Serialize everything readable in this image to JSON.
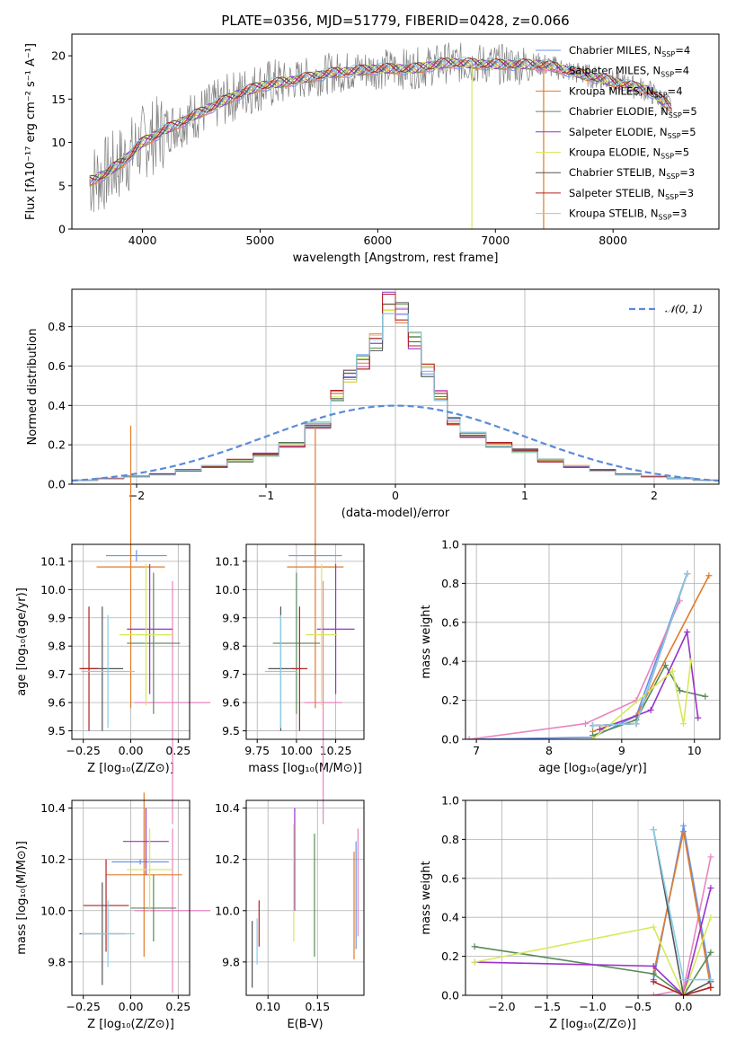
{
  "figure": {
    "title": "PLATE=0356, MJD=51779, FIBERID=0428, z=0.066"
  },
  "colors": {
    "chabrier_miles": "#6495ed",
    "salpeter_miles": "#e884c0",
    "kroupa_miles": "#e07b2a",
    "chabrier_elodie": "#5a8a5a",
    "salpeter_elodie": "#9932cc",
    "kroupa_elodie": "#d8e85a",
    "chabrier_stelib": "#555555",
    "salpeter_stelib": "#b22222",
    "kroupa_stelib": "#87ceeb",
    "data": "#808080",
    "normal": "#5b8ad8"
  },
  "chart_data": [
    {
      "id": "spectrum",
      "type": "line",
      "xlabel": "wavelength [Angstrom, rest frame]",
      "ylabel": "Flux [fλ10⁻¹⁷ erg cm⁻² s⁻¹ A⁻¹]",
      "xlim": [
        3400,
        8900
      ],
      "ylim": [
        0,
        22.5
      ],
      "xticks": [
        "4000",
        "5000",
        "6000",
        "7000",
        "8000"
      ],
      "yticks": [
        "0",
        "5",
        "10",
        "15",
        "20"
      ],
      "grid": false,
      "legend_position": "right",
      "continuum": {
        "x": [
          3550,
          3700,
          3850,
          4000,
          4200,
          4500,
          4800,
          5000,
          5300,
          5600,
          6000,
          6300,
          6600,
          7000,
          7400,
          7700,
          8000,
          8300,
          8500
        ],
        "y": [
          5.5,
          6.5,
          8,
          10,
          11.5,
          13.5,
          15.5,
          16.5,
          17.2,
          18,
          18.5,
          18.5,
          19.2,
          19,
          19,
          18,
          17,
          16,
          14
        ]
      },
      "legend": [
        {
          "label": "Chabrier MILES",
          "nssp": "4"
        },
        {
          "label": "Salpeter MILES",
          "nssp": "4"
        },
        {
          "label": "Kroupa MILES",
          "nssp": "4"
        },
        {
          "label": "Chabrier ELODIE",
          "nssp": "5"
        },
        {
          "label": "Salpeter ELODIE",
          "nssp": "5"
        },
        {
          "label": "Kroupa ELODIE",
          "nssp": "5"
        },
        {
          "label": "Chabrier STELIB",
          "nssp": "3"
        },
        {
          "label": "Salpeter STELIB",
          "nssp": "3"
        },
        {
          "label": "Kroupa STELIB",
          "nssp": "3"
        }
      ]
    },
    {
      "id": "residuals",
      "type": "histogram",
      "xlabel": "(data-model)/error",
      "ylabel": "Normed distribution",
      "xlim": [
        -2.5,
        2.5
      ],
      "ylim": [
        0,
        0.99
      ],
      "xticks": [
        "−2",
        "−1",
        "0",
        "1",
        "2"
      ],
      "yticks": [
        "0.0",
        "0.2",
        "0.4",
        "0.6",
        "0.8"
      ],
      "grid": true,
      "legend_position": "top-right",
      "normal_label": "𝒩(0, 1)",
      "bin_edges": [
        -2.5,
        -2.3,
        -2.1,
        -1.9,
        -1.7,
        -1.5,
        -1.3,
        -1.1,
        -0.9,
        -0.7,
        -0.5,
        -0.4,
        -0.3,
        -0.2,
        -0.1,
        0.0,
        0.1,
        0.2,
        0.3,
        0.4,
        0.5,
        0.7,
        0.9,
        1.1,
        1.3,
        1.5,
        1.7,
        1.9,
        2.1,
        2.3,
        2.5
      ],
      "hist": [
        0.02,
        0.03,
        0.04,
        0.05,
        0.07,
        0.09,
        0.12,
        0.15,
        0.2,
        0.3,
        0.45,
        0.55,
        0.62,
        0.72,
        0.92,
        0.87,
        0.73,
        0.58,
        0.45,
        0.32,
        0.25,
        0.2,
        0.17,
        0.12,
        0.09,
        0.07,
        0.05,
        0.04,
        0.03,
        0.02
      ]
    },
    {
      "id": "age_vs_Z",
      "type": "errorbar",
      "xlabel": "Z [log₁₀(Z/Z⊙)]",
      "ylabel": "age  [log₁₀(age/yr)]",
      "xlim": [
        -0.31,
        0.31
      ],
      "ylim": [
        9.47,
        10.16
      ],
      "xticks": [
        "−0.25",
        "0.00",
        "0.25"
      ],
      "yticks": [
        "9.5",
        "9.6",
        "9.7",
        "9.8",
        "9.9",
        "10.0",
        "10.1"
      ],
      "grid": true,
      "points": [
        {
          "x": 0.03,
          "y": 10.12,
          "xerr": 0.16,
          "yerr": 0.02
        },
        {
          "x": 0.22,
          "y": 9.6,
          "xerr": 0.2,
          "yerr": 0.43
        },
        {
          "x": 0.0,
          "y": 10.08,
          "xerr": 0.18,
          "yerr": 0.5
        },
        {
          "x": 0.12,
          "y": 9.81,
          "xerr": 0.14,
          "yerr": 0.25
        },
        {
          "x": 0.1,
          "y": 9.86,
          "xerr": 0.12,
          "yerr": 0.23
        },
        {
          "x": 0.08,
          "y": 9.84,
          "xerr": 0.14,
          "yerr": 0.25
        },
        {
          "x": -0.15,
          "y": 9.72,
          "xerr": 0.11,
          "yerr": 0.22
        },
        {
          "x": -0.22,
          "y": 9.72,
          "xerr": 0.05,
          "yerr": 0.22
        },
        {
          "x": -0.12,
          "y": 9.71,
          "xerr": 0.14,
          "yerr": 0.2
        }
      ]
    },
    {
      "id": "age_vs_mass",
      "type": "errorbar",
      "xlabel": "mass [log₁₀(M/M⊙)]",
      "ylabel": "",
      "xlim": [
        9.68,
        10.43
      ],
      "ylim": [
        9.47,
        10.16
      ],
      "xticks": [
        "9.75",
        "10.00",
        "10.25"
      ],
      "yticks": [
        "9.5",
        "9.6",
        "9.7",
        "9.8",
        "9.9",
        "10.0",
        "10.1"
      ],
      "grid": true,
      "points": [
        {
          "x": 10.12,
          "y": 10.12,
          "xerr": 0.17,
          "yerr": 0.02
        },
        {
          "x": 10.17,
          "y": 9.6,
          "xerr": 0.12,
          "yerr": 0.43
        },
        {
          "x": 10.12,
          "y": 10.08,
          "xerr": 0.18,
          "yerr": 0.5
        },
        {
          "x": 10.0,
          "y": 9.81,
          "xerr": 0.15,
          "yerr": 0.25
        },
        {
          "x": 10.25,
          "y": 9.86,
          "xerr": 0.12,
          "yerr": 0.23
        },
        {
          "x": 10.16,
          "y": 9.84,
          "xerr": 0.1,
          "yerr": 0.25
        },
        {
          "x": 9.9,
          "y": 9.72,
          "xerr": 0.08,
          "yerr": 0.22
        },
        {
          "x": 10.02,
          "y": 9.72,
          "xerr": 0.05,
          "yerr": 0.22
        },
        {
          "x": 9.9,
          "y": 9.71,
          "xerr": 0.1,
          "yerr": 0.2
        }
      ]
    },
    {
      "id": "massweight_vs_age",
      "type": "line",
      "xlabel": "age  [log₁₀(age/yr)]",
      "ylabel": "mass weight",
      "xlim": [
        6.85,
        10.35
      ],
      "ylim": [
        0,
        1.0
      ],
      "xticks": [
        "7",
        "8",
        "9",
        "10"
      ],
      "yticks": [
        "0.0",
        "0.2",
        "0.4",
        "0.6",
        "0.8",
        "1.0"
      ],
      "grid": true,
      "series": [
        {
          "x": [
            6.9,
            8.6,
            9.2,
            9.9
          ],
          "y": [
            0.0,
            0.01,
            0.12,
            0.85
          ]
        },
        {
          "x": [
            6.9,
            8.5,
            9.2,
            9.8
          ],
          "y": [
            0.0,
            0.08,
            0.2,
            0.71
          ]
        },
        {
          "x": [
            8.6,
            9.2,
            10.2
          ],
          "y": [
            0.04,
            0.12,
            0.84
          ]
        },
        {
          "x": [
            8.6,
            9.2,
            9.6,
            9.8,
            10.15
          ],
          "y": [
            0.02,
            0.1,
            0.38,
            0.25,
            0.22
          ]
        },
        {
          "x": [
            8.7,
            9.4,
            9.9,
            10.05
          ],
          "y": [
            0.05,
            0.15,
            0.55,
            0.11
          ]
        },
        {
          "x": [
            8.6,
            9.7,
            9.85,
            9.95
          ],
          "y": [
            0.0,
            0.35,
            0.08,
            0.4
          ]
        },
        {
          "x": [
            8.6,
            9.2,
            9.9
          ],
          "y": [
            0.07,
            0.08,
            0.85
          ]
        },
        {
          "x": [
            8.6,
            9.2,
            9.9
          ],
          "y": [
            0.07,
            0.08,
            0.85
          ]
        },
        {
          "x": [
            8.6,
            9.2,
            9.9
          ],
          "y": [
            0.07,
            0.08,
            0.85
          ]
        }
      ]
    },
    {
      "id": "mass_vs_Z",
      "type": "errorbar",
      "xlabel": "Z [log₁₀(Z/Z⊙)]",
      "ylabel": "mass [log₁₀(M/M⊙)]",
      "xlim": [
        -0.31,
        0.31
      ],
      "ylim": [
        9.67,
        10.43
      ],
      "xticks": [
        "−0.25",
        "0.00",
        "0.25"
      ],
      "yticks": [
        "9.8",
        "10.0",
        "10.2",
        "10.4"
      ],
      "grid": true,
      "points": [
        {
          "x": 0.05,
          "y": 10.19,
          "xerr": 0.15,
          "yerr": 0.01
        },
        {
          "x": 0.22,
          "y": 10.0,
          "xerr": 0.2,
          "yerr": 0.32
        },
        {
          "x": 0.07,
          "y": 10.14,
          "xerr": 0.2,
          "yerr": 0.32
        },
        {
          "x": 0.12,
          "y": 10.01,
          "xerr": 0.12,
          "yerr": 0.13
        },
        {
          "x": 0.08,
          "y": 10.27,
          "xerr": 0.12,
          "yerr": 0.13
        },
        {
          "x": 0.1,
          "y": 10.16,
          "xerr": 0.12,
          "yerr": 0.16
        },
        {
          "x": -0.15,
          "y": 9.91,
          "xerr": 0.12,
          "yerr": 0.2
        },
        {
          "x": -0.13,
          "y": 10.02,
          "xerr": 0.12,
          "yerr": 0.18
        },
        {
          "x": -0.12,
          "y": 9.91,
          "xerr": 0.14,
          "yerr": 0.13
        }
      ]
    },
    {
      "id": "mass_vs_EBV",
      "type": "errorbar",
      "xlabel": "E(B-V)",
      "ylabel": "",
      "xlim": [
        0.078,
        0.197
      ],
      "ylim": [
        9.67,
        10.43
      ],
      "xticks": [
        "0.10",
        "0.15"
      ],
      "yticks": [
        "9.8",
        "10.0",
        "10.2",
        "10.4"
      ],
      "grid": true,
      "points": [
        {
          "x": 0.189,
          "y": 10.06,
          "xerr": 0.0,
          "yerr": 0.21
        },
        {
          "x": 0.191,
          "y": 10.11,
          "xerr": 0.0,
          "yerr": 0.21
        },
        {
          "x": 0.187,
          "y": 10.02,
          "xerr": 0.0,
          "yerr": 0.21
        },
        {
          "x": 0.147,
          "y": 10.06,
          "xerr": 0.0,
          "yerr": 0.24
        },
        {
          "x": 0.127,
          "y": 10.2,
          "xerr": 0.0,
          "yerr": 0.2
        },
        {
          "x": 0.126,
          "y": 10.11,
          "xerr": 0.0,
          "yerr": 0.23
        },
        {
          "x": 0.084,
          "y": 9.83,
          "xerr": 0.0,
          "yerr": 0.13
        },
        {
          "x": 0.091,
          "y": 9.95,
          "xerr": 0.0,
          "yerr": 0.09
        },
        {
          "x": 0.089,
          "y": 9.88,
          "xerr": 0.0,
          "yerr": 0.09
        }
      ]
    },
    {
      "id": "massweight_vs_Z",
      "type": "line",
      "xlabel": "Z [log₁₀(Z/Z⊙)]",
      "ylabel": "mass weight",
      "xlim": [
        -2.4,
        0.4
      ],
      "ylim": [
        0,
        1.0
      ],
      "xticks": [
        "−2.0",
        "−1.5",
        "−1.0",
        "−0.5",
        "0.0"
      ],
      "yticks": [
        "0.0",
        "0.2",
        "0.4",
        "0.6",
        "0.8",
        "1.0"
      ],
      "grid": true,
      "series": [
        {
          "x": [
            -0.33,
            0.0,
            0.3
          ],
          "y": [
            0.08,
            0.87,
            0.08
          ]
        },
        {
          "x": [
            -0.33,
            0.0,
            0.3
          ],
          "y": [
            0.0,
            0.03,
            0.71
          ]
        },
        {
          "x": [
            -0.33,
            0.0,
            0.3
          ],
          "y": [
            0.11,
            0.84,
            0.04
          ]
        },
        {
          "x": [
            -2.3,
            -0.33,
            0.0,
            0.3
          ],
          "y": [
            0.25,
            0.11,
            0.0,
            0.22
          ]
        },
        {
          "x": [
            -2.3,
            -0.33,
            0.0,
            0.3
          ],
          "y": [
            0.17,
            0.15,
            0.0,
            0.55
          ]
        },
        {
          "x": [
            -2.3,
            -0.33,
            0.0,
            0.3
          ],
          "y": [
            0.17,
            0.35,
            0.0,
            0.4
          ]
        },
        {
          "x": [
            -0.33,
            0.0,
            0.3
          ],
          "y": [
            0.85,
            0.0,
            0.07
          ]
        },
        {
          "x": [
            -0.33,
            0.0,
            0.3
          ],
          "y": [
            0.07,
            0.0,
            0.04
          ]
        },
        {
          "x": [
            -0.33,
            0.0,
            0.3
          ],
          "y": [
            0.85,
            0.08,
            0.08
          ]
        }
      ]
    }
  ]
}
